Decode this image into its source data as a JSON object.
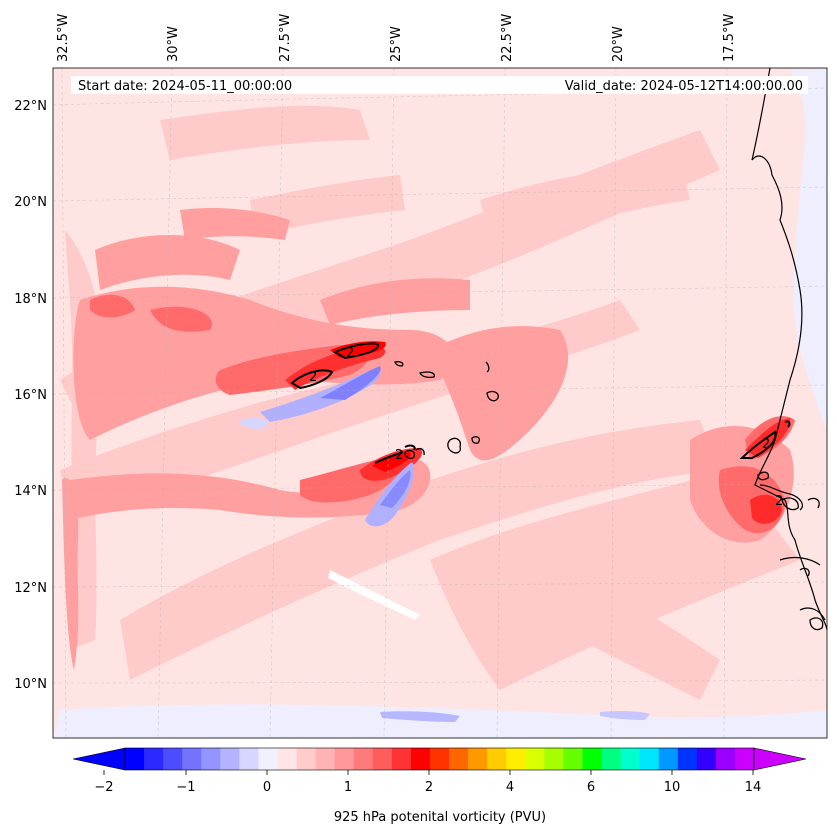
{
  "map": {
    "start_label": "Start date: 2024-05-11_00:00:00",
    "valid_label": "Valid_date: 2024-05-12T14:00:00.00",
    "lon_labels": [
      "32.5°W",
      "30°W",
      "27.5°W",
      "25°W",
      "22.5°W",
      "20°W",
      "17.5°W"
    ],
    "lat_labels": [
      "22°N",
      "20°N",
      "18°N",
      "16°N",
      "14°N",
      "12°N",
      "10°N"
    ],
    "contour_labels": [
      "2",
      "2",
      "2",
      "2",
      "2"
    ]
  },
  "colorbar": {
    "title": "925 hPa potenital vorticity (PVU)",
    "tick_labels": [
      "−2",
      "−1",
      "0",
      "1",
      "2",
      "4",
      "6",
      "10",
      "14"
    ],
    "colors": [
      "#0000ff",
      "#2a2aff",
      "#4d4dff",
      "#7373ff",
      "#9494ff",
      "#b3b3ff",
      "#d6d6ff",
      "#f0f0ff",
      "#ffe6e6",
      "#ffcccc",
      "#ffb3b3",
      "#ff9999",
      "#ff7a7a",
      "#ff5c5c",
      "#ff3333",
      "#ff0000",
      "#ff3300",
      "#ff6600",
      "#ff9900",
      "#ffcc00",
      "#ffee00",
      "#d9ff00",
      "#a6ff00",
      "#66ff00",
      "#00ff00",
      "#00ff80",
      "#00ffcc",
      "#00e6ff",
      "#0099ff",
      "#0033ff",
      "#3300ff",
      "#9900ff",
      "#cc00ff"
    ],
    "under_color": "#0000ff",
    "over_color": "#cc00ff"
  },
  "field_colors": {
    "background": "#ffe3e3",
    "light": "#ffc9c9",
    "medium": "#ff9b9b",
    "strong": "#ff6b6b",
    "intense": "#ff3030",
    "peak": "#ff0000",
    "negative_light": "#eeeeff",
    "negative": "#9a9aff",
    "negative_strong": "#7070ff",
    "coast": "#000000"
  }
}
